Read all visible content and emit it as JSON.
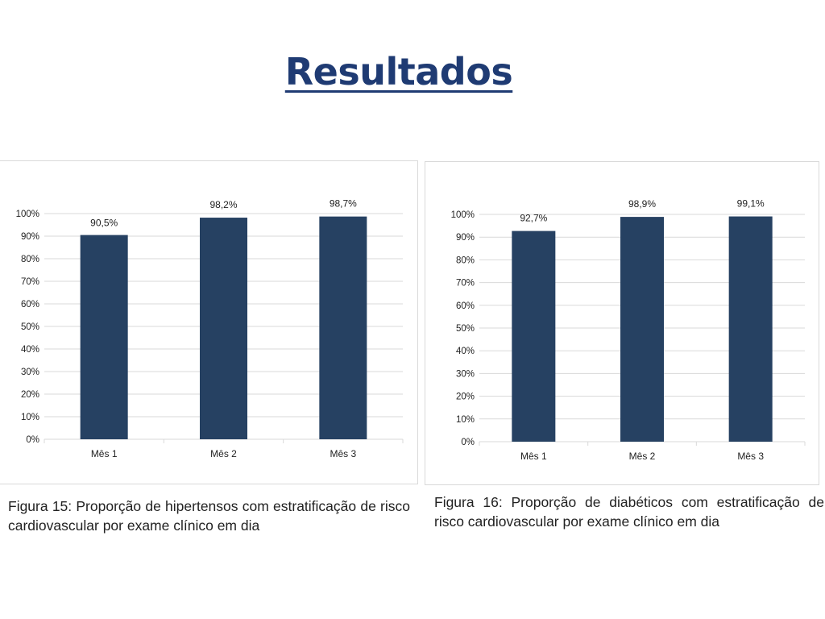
{
  "slide": {
    "title": "Resultados"
  },
  "colors": {
    "bar": "#264162",
    "title": "#1f3b73",
    "grid": "#d9d9d9",
    "axis_text": "#222222"
  },
  "chart_data": [
    {
      "type": "bar",
      "categories": [
        "Mês 1",
        "Mês 2",
        "Mês 3"
      ],
      "values": [
        90.5,
        98.2,
        98.7
      ],
      "data_labels": [
        "90,5%",
        "98,2%",
        "98,7%"
      ],
      "y_ticks": [
        "0%",
        "10%",
        "20%",
        "30%",
        "40%",
        "50%",
        "60%",
        "70%",
        "80%",
        "90%",
        "100%"
      ],
      "ylim": [
        0,
        100
      ],
      "grid": true,
      "legend": "none",
      "caption": "Figura 15: Proporção de hipertensos com estratificação de risco cardiovascular por exame clínico em dia"
    },
    {
      "type": "bar",
      "categories": [
        "Mês 1",
        "Mês 2",
        "Mês 3"
      ],
      "values": [
        92.7,
        98.9,
        99.1
      ],
      "data_labels": [
        "92,7%",
        "98,9%",
        "99,1%"
      ],
      "y_ticks": [
        "0%",
        "10%",
        "20%",
        "30%",
        "40%",
        "50%",
        "60%",
        "70%",
        "80%",
        "90%",
        "100%"
      ],
      "ylim": [
        0,
        100
      ],
      "grid": true,
      "legend": "none",
      "caption": "Figura 16: Proporção de diabéticos com estratificação de risco cardiovascular por exame clínico em dia"
    }
  ]
}
